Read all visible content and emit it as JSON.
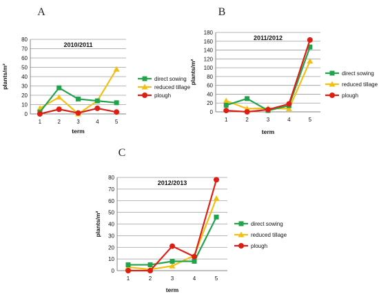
{
  "colors": {
    "direct_sowing": "#22a24a",
    "reduced_tillage": "#f2c012",
    "plough": "#dd1e14",
    "grid": "#9a9a9a"
  },
  "chart_data": [
    {
      "panel": "A",
      "type": "line",
      "title": "2010/2011",
      "xlabel": "term",
      "ylabel": "plants/m²",
      "x": [
        1,
        2,
        3,
        4,
        5
      ],
      "ylim": [
        0,
        80
      ],
      "yticks": [
        0,
        10,
        20,
        30,
        40,
        50,
        60,
        70,
        80
      ],
      "grid": true,
      "legend": "right",
      "series": [
        {
          "name": "direct sowing",
          "key": "direct_sowing",
          "marker": "square",
          "values": [
            2,
            28,
            16,
            14,
            12
          ]
        },
        {
          "name": "reduced tillage",
          "key": "reduced_tillage",
          "marker": "triangle",
          "values": [
            6,
            18,
            0,
            14,
            48
          ]
        },
        {
          "name": "plough",
          "key": "plough",
          "marker": "circle",
          "values": [
            0,
            5,
            1,
            6,
            2
          ]
        }
      ]
    },
    {
      "panel": "B",
      "type": "line",
      "title": "2011/2012",
      "xlabel": "term",
      "ylabel": "plants/m²",
      "x": [
        1,
        2,
        3,
        4,
        5
      ],
      "ylim": [
        0,
        180
      ],
      "yticks": [
        0,
        20,
        40,
        60,
        80,
        100,
        120,
        140,
        160,
        180
      ],
      "grid": true,
      "legend": "right",
      "series": [
        {
          "name": "direct sowing",
          "key": "direct_sowing",
          "marker": "square",
          "values": [
            15,
            30,
            3,
            14,
            147
          ]
        },
        {
          "name": "reduced tillage",
          "key": "reduced_tillage",
          "marker": "triangle",
          "values": [
            25,
            7,
            8,
            7,
            115
          ]
        },
        {
          "name": "plough",
          "key": "plough",
          "marker": "circle",
          "values": [
            3,
            0,
            5,
            18,
            163
          ]
        }
      ]
    },
    {
      "panel": "C",
      "type": "line",
      "title": "2012/2013",
      "xlabel": "term",
      "ylabel": "plants/m²",
      "x": [
        1,
        2,
        3,
        4,
        5
      ],
      "ylim": [
        0,
        80
      ],
      "yticks": [
        0,
        10,
        20,
        30,
        40,
        50,
        60,
        70,
        80
      ],
      "grid": true,
      "legend": "right",
      "series": [
        {
          "name": "direct sowing",
          "key": "direct_sowing",
          "marker": "square",
          "values": [
            5,
            5,
            8,
            8,
            46
          ]
        },
        {
          "name": "reduced tillage",
          "key": "reduced_tillage",
          "marker": "triangle",
          "values": [
            3,
            1,
            4,
            13,
            62
          ]
        },
        {
          "name": "plough",
          "key": "plough",
          "marker": "circle",
          "values": [
            0,
            0,
            21,
            12,
            78
          ]
        }
      ]
    }
  ]
}
